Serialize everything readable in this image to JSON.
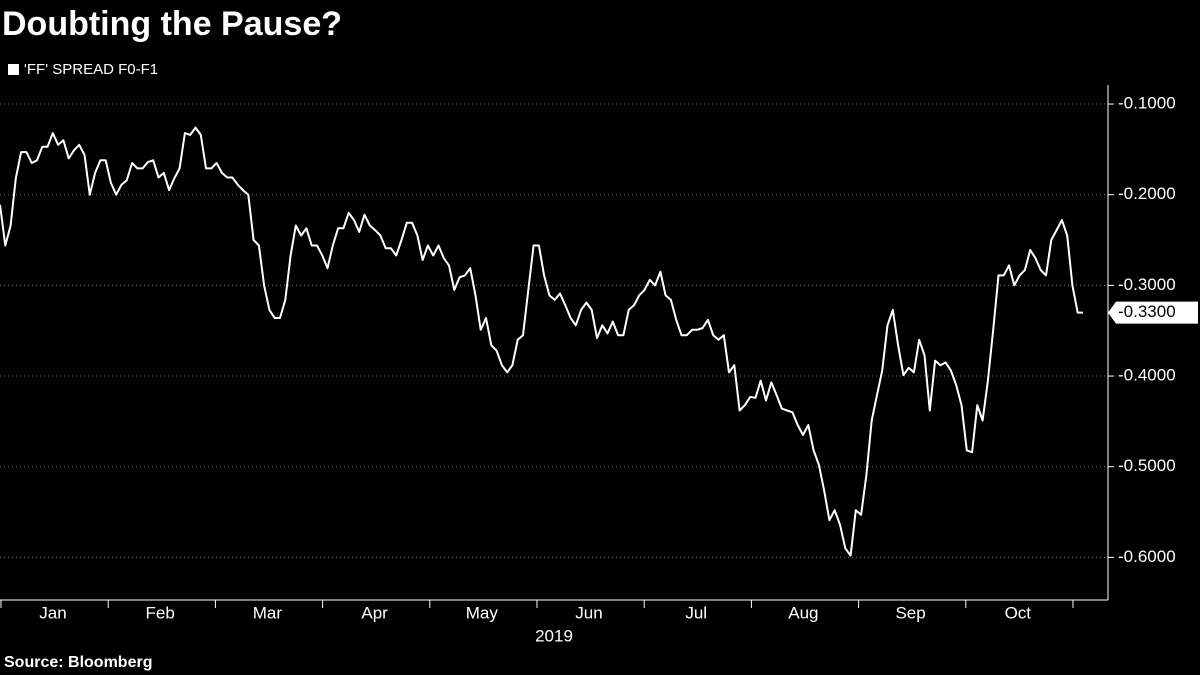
{
  "chart_data": {
    "type": "line",
    "title": "Doubting the Pause?",
    "source": "Source: Bloomberg",
    "series": [
      {
        "name": "'FF' SPREAD F0-F1",
        "color": "#ffffff",
        "values": [
          -0.211,
          -0.256,
          -0.234,
          -0.182,
          -0.153,
          -0.153,
          -0.165,
          -0.162,
          -0.147,
          -0.147,
          -0.132,
          -0.145,
          -0.14,
          -0.16,
          -0.151,
          -0.145,
          -0.156,
          -0.2,
          -0.176,
          -0.162,
          -0.162,
          -0.187,
          -0.2,
          -0.189,
          -0.184,
          -0.165,
          -0.171,
          -0.171,
          -0.164,
          -0.162,
          -0.181,
          -0.176,
          -0.195,
          -0.182,
          -0.171,
          -0.132,
          -0.134,
          -0.126,
          -0.134,
          -0.171,
          -0.171,
          -0.165,
          -0.176,
          -0.181,
          -0.181,
          -0.189,
          -0.195,
          -0.2,
          -0.25,
          -0.256,
          -0.3,
          -0.327,
          -0.336,
          -0.336,
          -0.316,
          -0.267,
          -0.234,
          -0.245,
          -0.237,
          -0.256,
          -0.256,
          -0.267,
          -0.281,
          -0.256,
          -0.237,
          -0.237,
          -0.22,
          -0.228,
          -0.241,
          -0.222,
          -0.234,
          -0.239,
          -0.245,
          -0.259,
          -0.259,
          -0.267,
          -0.25,
          -0.231,
          -0.231,
          -0.245,
          -0.272,
          -0.256,
          -0.267,
          -0.256,
          -0.27,
          -0.278,
          -0.305,
          -0.291,
          -0.289,
          -0.281,
          -0.311,
          -0.349,
          -0.336,
          -0.366,
          -0.372,
          -0.388,
          -0.396,
          -0.388,
          -0.36,
          -0.355,
          -0.305,
          -0.256,
          -0.256,
          -0.289,
          -0.311,
          -0.316,
          -0.309,
          -0.322,
          -0.336,
          -0.344,
          -0.327,
          -0.319,
          -0.327,
          -0.358,
          -0.344,
          -0.353,
          -0.34,
          -0.355,
          -0.355,
          -0.327,
          -0.322,
          -0.311,
          -0.305,
          -0.294,
          -0.3,
          -0.285,
          -0.311,
          -0.316,
          -0.338,
          -0.355,
          -0.355,
          -0.349,
          -0.349,
          -0.347,
          -0.338,
          -0.355,
          -0.36,
          -0.355,
          -0.396,
          -0.388,
          -0.438,
          -0.432,
          -0.423,
          -0.424,
          -0.405,
          -0.427,
          -0.407,
          -0.421,
          -0.436,
          -0.438,
          -0.44,
          -0.454,
          -0.465,
          -0.454,
          -0.482,
          -0.498,
          -0.526,
          -0.559,
          -0.548,
          -0.564,
          -0.59,
          -0.598,
          -0.548,
          -0.553,
          -0.509,
          -0.449,
          -0.421,
          -0.394,
          -0.344,
          -0.327,
          -0.366,
          -0.399,
          -0.391,
          -0.396,
          -0.36,
          -0.377,
          -0.438,
          -0.383,
          -0.388,
          -0.385,
          -0.394,
          -0.41,
          -0.432,
          -0.482,
          -0.484,
          -0.432,
          -0.449,
          -0.405,
          -0.349,
          -0.289,
          -0.289,
          -0.278,
          -0.3,
          -0.289,
          -0.283,
          -0.261,
          -0.27,
          -0.283,
          -0.289,
          -0.25,
          -0.239,
          -0.228,
          -0.245,
          -0.3,
          -0.33,
          -0.33
        ]
      }
    ],
    "last_value_label": "-0.3300",
    "x_labels": [
      "Jan",
      "Feb",
      "Mar",
      "Apr",
      "May",
      "Jun",
      "Jul",
      "Aug",
      "Sep",
      "Oct"
    ],
    "x_year": "2019",
    "ylim": [
      -0.647,
      -0.079
    ],
    "yticks": [
      {
        "value": -0.1,
        "label": "-0.1000"
      },
      {
        "value": -0.2,
        "label": "-0.2000"
      },
      {
        "value": -0.3,
        "label": "-0.3000"
      },
      {
        "value": -0.4,
        "label": "-0.4000"
      },
      {
        "value": -0.5,
        "label": "-0.5000"
      },
      {
        "value": -0.6,
        "label": "-0.6000"
      }
    ],
    "grid": true
  }
}
